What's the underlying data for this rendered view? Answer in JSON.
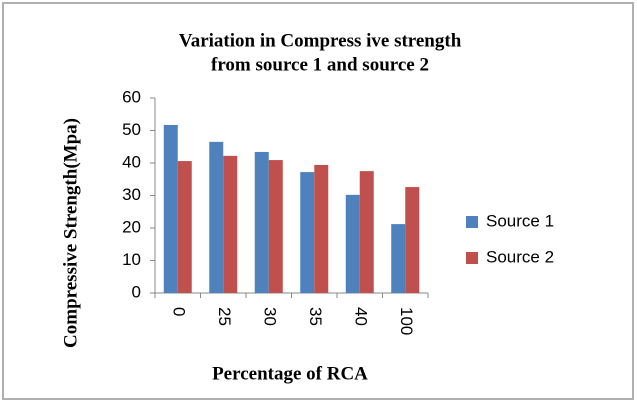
{
  "chart_data": {
    "type": "bar",
    "title": [
      "Variation in Compress ive strength",
      "from source 1 and source 2"
    ],
    "x_label": "Percentage of RCA",
    "y_label": "Compressive Strength(Mpa)",
    "categories": [
      "0",
      "25",
      "30",
      "35",
      "40",
      "100"
    ],
    "series": [
      {
        "name": "Source 1",
        "color": "#4f81bd",
        "values": [
          51.7,
          46.5,
          43.4,
          37.2,
          30.2,
          21.2
        ]
      },
      {
        "name": "Source 2",
        "color": "#c0504d",
        "values": [
          40.6,
          42.2,
          40.9,
          39.4,
          37.5,
          32.6
        ]
      }
    ],
    "ylim": [
      0,
      60
    ],
    "yticks": [
      0,
      10,
      20,
      30,
      40,
      50,
      60
    ],
    "grid": false,
    "legend": "right"
  }
}
